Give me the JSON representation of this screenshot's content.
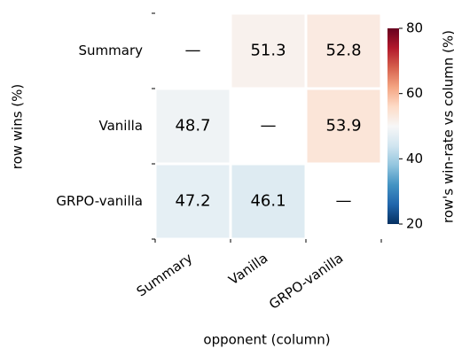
{
  "chart_data": {
    "type": "heatmap",
    "rows": [
      "Summary",
      "Vanilla",
      "GRPO-vanilla"
    ],
    "columns": [
      "Summary",
      "Vanilla",
      "GRPO-vanilla"
    ],
    "values": [
      [
        null,
        51.3,
        52.8
      ],
      [
        48.7,
        null,
        53.9
      ],
      [
        47.2,
        46.1,
        null
      ]
    ],
    "missing_label": "—",
    "xlabel": "opponent (column)",
    "ylabel": "row wins (%)",
    "colorbar_label": "row's win-rate vs column (%)",
    "clim": [
      20,
      80
    ],
    "cticks": [
      20,
      40,
      60,
      80
    ],
    "colormap": [
      "#053061",
      "#2166ac",
      "#4393c3",
      "#92c5de",
      "#d1e5f0",
      "#f7f7f7",
      "#fddbc7",
      "#f4a582",
      "#d6604d",
      "#b2182b",
      "#67001f"
    ]
  }
}
